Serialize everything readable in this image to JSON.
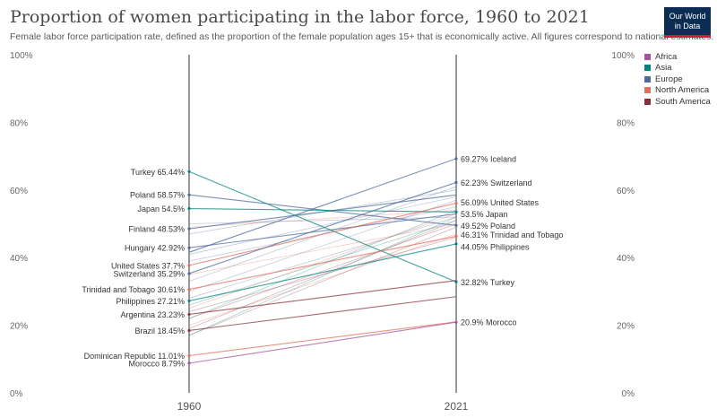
{
  "header": {
    "title": "Proportion of women participating in the labor force, 1960 to 2021",
    "subtitle": "Female labor force participation rate, defined as the proportion of the female population ages 15+ that is economically active. All figures correspond to national estimates.",
    "logo_line1": "Our World",
    "logo_line2": "in Data"
  },
  "colors": {
    "Africa": "#a2559c",
    "Asia": "#00847e",
    "Europe": "#4c6a9c",
    "North America": "#e56e5a",
    "South America": "#883039"
  },
  "legend": [
    "Africa",
    "Asia",
    "Europe",
    "North America",
    "South America"
  ],
  "chart_data": {
    "type": "slope",
    "x": [
      "1960",
      "2021"
    ],
    "ylim": [
      0,
      100
    ],
    "y_ticks": [
      "0%",
      "20%",
      "40%",
      "60%",
      "80%",
      "100%"
    ],
    "y_tick_values": [
      0,
      20,
      40,
      60,
      80,
      100
    ],
    "grid": false,
    "legend_position": "top-right",
    "series": [
      {
        "name": "Iceland",
        "region": "Europe",
        "values": [
          null,
          69.27
        ],
        "label_end": true
      },
      {
        "name": "Turkey",
        "region": "Asia",
        "values": [
          65.44,
          32.82
        ],
        "label_start": true,
        "label_end": true
      },
      {
        "name": "Poland",
        "region": "Europe",
        "values": [
          58.57,
          49.52
        ],
        "label_start": true,
        "label_end": true
      },
      {
        "name": "Japan",
        "region": "Asia",
        "values": [
          54.5,
          53.5
        ],
        "label_start": true,
        "label_end": true
      },
      {
        "name": "Finland",
        "region": "Europe",
        "values": [
          48.53,
          null
        ],
        "label_start": true
      },
      {
        "name": "Hungary",
        "region": "Europe",
        "values": [
          42.92,
          null
        ],
        "label_start": true
      },
      {
        "name": "United States",
        "region": "North America",
        "values": [
          37.7,
          56.09
        ],
        "label_start": true,
        "label_end": true
      },
      {
        "name": "Switzerland",
        "region": "Europe",
        "values": [
          35.29,
          62.23
        ],
        "label_start": true,
        "label_end": true
      },
      {
        "name": "Trinidad and Tobago",
        "region": "North America",
        "values": [
          30.61,
          46.31
        ],
        "label_start": true,
        "label_end": true
      },
      {
        "name": "Philippines",
        "region": "Asia",
        "values": [
          27.21,
          44.05
        ],
        "label_start": true,
        "label_end": true
      },
      {
        "name": "Argentina",
        "region": "South America",
        "values": [
          23.23,
          null
        ],
        "label_start": true
      },
      {
        "name": "Brazil",
        "region": "South America",
        "values": [
          18.45,
          null
        ],
        "label_start": true
      },
      {
        "name": "Dominican Republic",
        "region": "North America",
        "values": [
          11.01,
          null
        ],
        "label_start": true
      },
      {
        "name": "Morocco",
        "region": "Africa",
        "values": [
          8.79,
          20.9
        ],
        "label_start": true,
        "label_end": true
      }
    ]
  }
}
